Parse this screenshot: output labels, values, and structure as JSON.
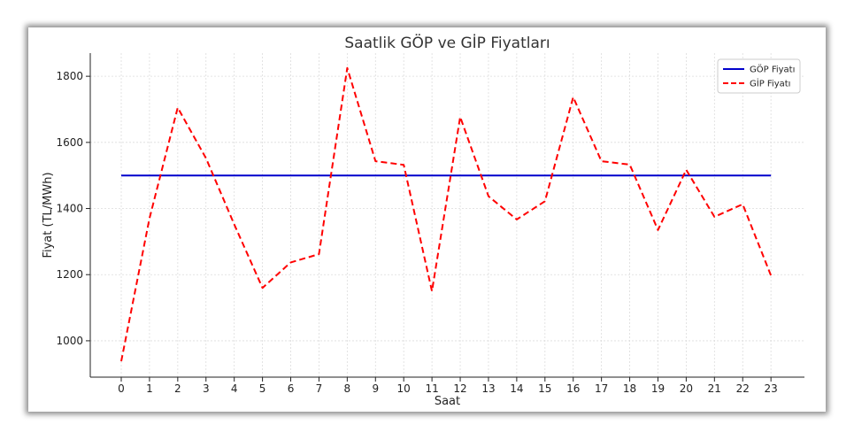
{
  "chart_data": {
    "type": "line",
    "title": "Saatlik GÖP ve GİP Fiyatları",
    "xlabel": "Saat",
    "ylabel": "Fiyat (TL/MWh)",
    "x": [
      "0",
      "1",
      "2",
      "3",
      "4",
      "5",
      "6",
      "7",
      "8",
      "9",
      "10",
      "11",
      "12",
      "13",
      "14",
      "15",
      "16",
      "17",
      "18",
      "19",
      "20",
      "21",
      "22",
      "23"
    ],
    "y_ticks": [
      "1000",
      "1200",
      "1400",
      "1600",
      "1800"
    ],
    "ylim": [
      890,
      1870
    ],
    "grid": true,
    "legend_position": "top-right",
    "series": [
      {
        "name": "GÖP Fiyatı",
        "color": "#0000cc",
        "style": "solid",
        "values": [
          1500,
          1500,
          1500,
          1500,
          1500,
          1500,
          1500,
          1500,
          1500,
          1500,
          1500,
          1500,
          1500,
          1500,
          1500,
          1500,
          1500,
          1500,
          1500,
          1500,
          1500,
          1500,
          1500,
          1500
        ]
      },
      {
        "name": "GİP Fiyatı",
        "color": "#ff0000",
        "style": "dashed",
        "values": [
          938,
          1370,
          1705,
          1552,
          1352,
          1160,
          1237,
          1262,
          1825,
          1543,
          1532,
          1150,
          1677,
          1437,
          1367,
          1422,
          1737,
          1543,
          1533,
          1335,
          1517,
          1375,
          1413,
          1197
        ]
      }
    ]
  }
}
